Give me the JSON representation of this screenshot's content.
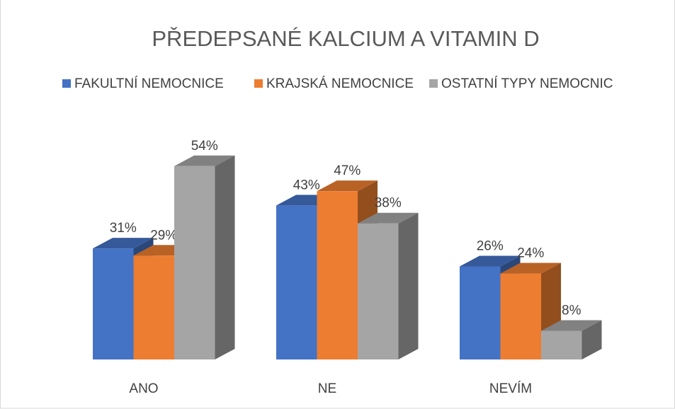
{
  "chart_data": {
    "type": "bar3d",
    "title": "PŘEDEPSANÉ KALCIUM A VITAMIN D",
    "categories": [
      "ANO",
      "NE",
      "NEVÍM"
    ],
    "series": [
      {
        "name": "FAKULTNÍ NEMOCNICE",
        "color": "#4472c4",
        "values": [
          31,
          43,
          26
        ],
        "value_labels": [
          "31%",
          "43%",
          "26%"
        ]
      },
      {
        "name": "KRAJSKÁ NEMOCNICE",
        "color": "#ed7d31",
        "values": [
          29,
          47,
          24
        ],
        "value_labels": [
          "29%",
          "47%",
          "24%"
        ]
      },
      {
        "name": "OSTATNÍ TYPY NEMOCNIC",
        "color": "#a5a5a5",
        "values": [
          54,
          38,
          8
        ],
        "value_labels": [
          "54%",
          "38%",
          "8%"
        ]
      }
    ],
    "legend": "top"
  }
}
